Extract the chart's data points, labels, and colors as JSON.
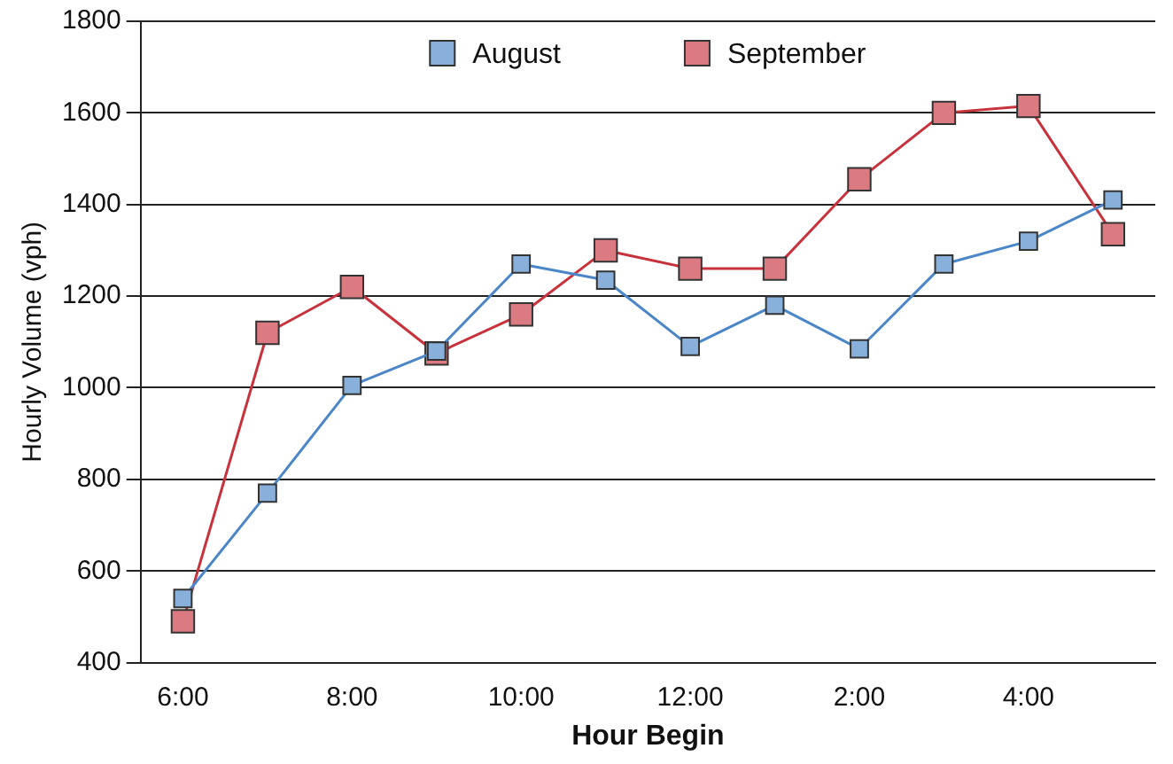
{
  "chart_data": {
    "type": "line",
    "xlabel": "Hour Begin",
    "ylabel": "Hourly Volume (vph)",
    "categories": [
      "6:00",
      null,
      "8:00",
      null,
      "10:00",
      null,
      "12:00",
      null,
      "2:00",
      null,
      "4:00",
      null
    ],
    "series": [
      {
        "name": "August",
        "color": "#4a86c8",
        "values": [
          540,
          770,
          1005,
          1080,
          1270,
          1235,
          1090,
          1180,
          1085,
          1270,
          1320,
          1410
        ]
      },
      {
        "name": "September",
        "color": "#c8323c",
        "values": [
          490,
          1120,
          1220,
          1075,
          1160,
          1300,
          1260,
          1260,
          1455,
          1600,
          1615,
          1335
        ]
      }
    ],
    "ylim": [
      400,
      1800
    ],
    "yticks": [
      400,
      600,
      800,
      1000,
      1200,
      1400,
      1600,
      1800
    ],
    "grid": "y",
    "legend": "top",
    "marker": "square",
    "line_style": "solid"
  }
}
